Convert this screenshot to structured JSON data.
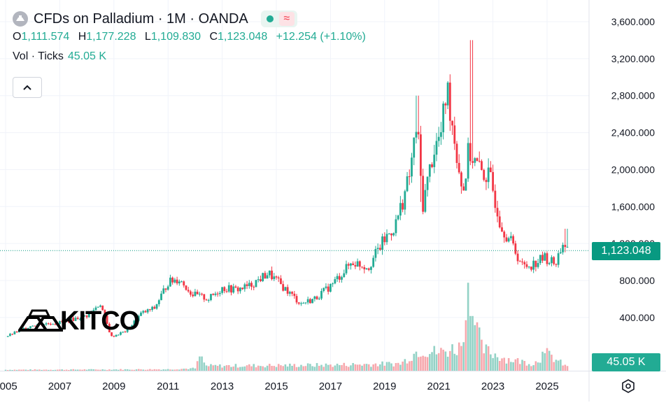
{
  "header": {
    "title": "CFDs on Palladium · 1M · OANDA",
    "ohlc": [
      {
        "label": "O",
        "value": "1,111.574"
      },
      {
        "label": "H",
        "value": "1,177.228"
      },
      {
        "label": "L",
        "value": "1,109.830"
      },
      {
        "label": "C",
        "value": "1,123.048"
      }
    ],
    "change": "+12.254 (+1.10%)",
    "volume_label": "Vol · Ticks",
    "volume_value": "45.05 K"
  },
  "watermark": {
    "text": "KITCO"
  },
  "icons": {
    "symbol": "palladium-symbol-icon",
    "collapse": "chevron-up-icon",
    "settings": "hexagon-settings-icon"
  },
  "colors": {
    "up": "#22ab94",
    "down": "#f23645",
    "vol_up": "#93d2c6",
    "vol_down": "#f7a8ad",
    "last_price": "#089981"
  },
  "price_badge": "1,123.048",
  "volume_badge": "45.05 K",
  "chart_data": {
    "type": "candlestick",
    "interval": "1M",
    "y_axis": {
      "range": [
        0,
        3800
      ],
      "ticks": [
        "400.000",
        "800.000",
        "1,200.000",
        "1,600.000",
        "2,000.000",
        "2,400.000",
        "2,800.000",
        "3,200.000",
        "3,600.000"
      ],
      "tick_values": [
        400,
        800,
        1200,
        1600,
        2000,
        2400,
        2800,
        3200,
        3600
      ]
    },
    "x_axis": {
      "labels": [
        "2005",
        "2007",
        "2009",
        "2011",
        "2013",
        "2015",
        "2017",
        "2019",
        "2021",
        "2023",
        "2025"
      ],
      "label_years": [
        2005,
        2007,
        2009,
        2011,
        2013,
        2015,
        2017,
        2019,
        2021,
        2023,
        2025
      ]
    },
    "last_price": 1123.048,
    "price_path_yearly": [
      [
        2005,
        190
      ],
      [
        2006,
        320
      ],
      [
        2007,
        345
      ],
      [
        2008,
        420
      ],
      [
        2008.5,
        550
      ],
      [
        2008.9,
        190
      ],
      [
        2009.5,
        260
      ],
      [
        2010,
        440
      ],
      [
        2010.5,
        500
      ],
      [
        2011,
        780
      ],
      [
        2011.4,
        820
      ],
      [
        2011.9,
        650
      ],
      [
        2012.5,
        600
      ],
      [
        2013,
        720
      ],
      [
        2013.5,
        700
      ],
      [
        2014,
        740
      ],
      [
        2014.7,
        880
      ],
      [
        2015,
        800
      ],
      [
        2015.9,
        550
      ],
      [
        2016.4,
        600
      ],
      [
        2017,
        740
      ],
      [
        2017.8,
        1000
      ],
      [
        2018.4,
        950
      ],
      [
        2018.9,
        1200
      ],
      [
        2019.4,
        1400
      ],
      [
        2019.9,
        1900
      ],
      [
        2020.2,
        2500
      ],
      [
        2020.4,
        1600
      ],
      [
        2020.8,
        2200
      ],
      [
        2021.1,
        2400
      ],
      [
        2021.3,
        2900
      ],
      [
        2021.7,
        2100
      ],
      [
        2021.9,
        1750
      ],
      [
        2022.1,
        2200
      ],
      [
        2022.5,
        2000
      ],
      [
        2022.9,
        1900
      ],
      [
        2023.3,
        1400
      ],
      [
        2023.7,
        1200
      ],
      [
        2024.1,
        950
      ],
      [
        2024.5,
        980
      ],
      [
        2024.9,
        1050
      ],
      [
        2025.3,
        980
      ],
      [
        2025.6,
        1220
      ],
      [
        2025.75,
        1123
      ]
    ],
    "spike_highs": [
      [
        2020.2,
        2800
      ],
      [
        2020.3,
        1650
      ],
      [
        2022.2,
        3400
      ],
      [
        2025.7,
        1360
      ]
    ],
    "volume_path_yearly": [
      [
        2005,
        2
      ],
      [
        2011,
        3
      ],
      [
        2012.0,
        5
      ],
      [
        2012.2,
        30
      ],
      [
        2012.4,
        10
      ],
      [
        2017,
        12
      ],
      [
        2019.6,
        15
      ],
      [
        2020.3,
        45
      ],
      [
        2021.0,
        38
      ],
      [
        2021.8,
        50
      ],
      [
        2022.2,
        130
      ],
      [
        2022.6,
        45
      ],
      [
        2023.5,
        25
      ],
      [
        2024.5,
        15
      ],
      [
        2025.0,
        35
      ],
      [
        2025.75,
        8
      ]
    ],
    "volume_spikes": [
      [
        2012.2,
        30
      ],
      [
        2021.9,
        60
      ],
      [
        2022.1,
        185
      ],
      [
        2022.2,
        115
      ],
      [
        2024.8,
        40
      ]
    ]
  }
}
